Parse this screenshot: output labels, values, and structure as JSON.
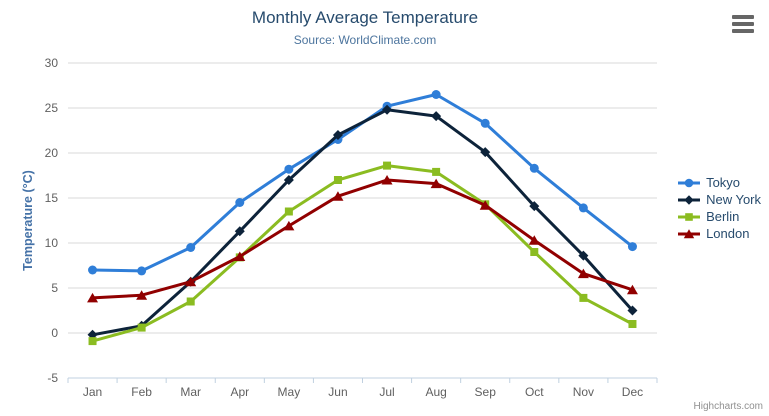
{
  "header": {
    "title": "Monthly Average Temperature",
    "subtitle": "Source: WorldClimate.com"
  },
  "credits": "Highcharts.com",
  "icons": {
    "context_menu": "hamburger-icon"
  },
  "colors": {
    "title": "#274b6d",
    "subtitle": "#4d759e",
    "axis_title": "#4572a7",
    "tick_label": "#606060",
    "gridline": "#d8d8d8",
    "axis_line": "#c0d0e0",
    "menu_icon": "#666666",
    "credits": "#909090"
  },
  "chart_data": {
    "type": "line",
    "title": "Monthly Average Temperature",
    "subtitle": "Source: WorldClimate.com",
    "categories": [
      "Jan",
      "Feb",
      "Mar",
      "Apr",
      "May",
      "Jun",
      "Jul",
      "Aug",
      "Sep",
      "Oct",
      "Nov",
      "Dec"
    ],
    "xlabel": "",
    "ylabel": "Temperature (°C)",
    "ylim": [
      -5,
      30
    ],
    "ytick_step": 5,
    "yticks": [
      -5,
      0,
      5,
      10,
      15,
      20,
      25,
      30
    ],
    "grid": true,
    "legend_position": "right",
    "series": [
      {
        "name": "Tokyo",
        "color": "#2f7ed8",
        "marker": "circle",
        "values": [
          7.0,
          6.9,
          9.5,
          14.5,
          18.2,
          21.5,
          25.2,
          26.5,
          23.3,
          18.3,
          13.9,
          9.6
        ]
      },
      {
        "name": "New York",
        "color": "#0d233a",
        "marker": "diamond",
        "values": [
          -0.2,
          0.8,
          5.7,
          11.3,
          17.0,
          22.0,
          24.8,
          24.1,
          20.1,
          14.1,
          8.6,
          2.5
        ]
      },
      {
        "name": "Berlin",
        "color": "#8bbc21",
        "marker": "square",
        "values": [
          -0.9,
          0.6,
          3.5,
          8.4,
          13.5,
          17.0,
          18.6,
          17.9,
          14.3,
          9.0,
          3.9,
          1.0
        ]
      },
      {
        "name": "London",
        "color": "#910000",
        "marker": "triangle",
        "values": [
          3.9,
          4.2,
          5.7,
          8.5,
          11.9,
          15.2,
          17.0,
          16.6,
          14.2,
          10.3,
          6.6,
          4.8
        ]
      }
    ]
  }
}
